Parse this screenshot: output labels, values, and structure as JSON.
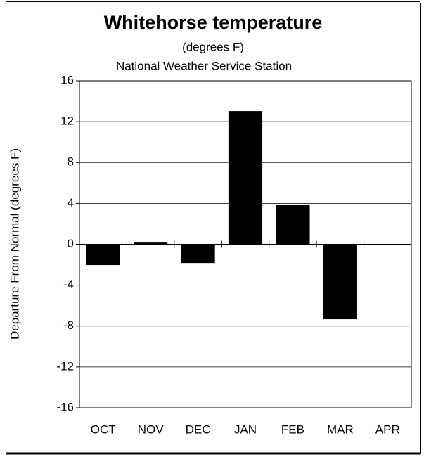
{
  "chart_data": {
    "type": "bar",
    "title": "Whitehorse temperature",
    "subtitle": "(degrees F)",
    "source": "National Weather Service Station",
    "y_label": "Departure From Normal (degrees F)",
    "categories": [
      "OCT",
      "NOV",
      "DEC",
      "JAN",
      "FEB",
      "MAR",
      "APR"
    ],
    "values": [
      -2.0,
      0.2,
      -1.8,
      13.0,
      3.8,
      -7.3,
      null
    ],
    "color": "#000000",
    "ylim": [
      -16,
      16
    ],
    "yticks": [
      -16,
      -12,
      -8,
      -4,
      0,
      4,
      8,
      12,
      16
    ],
    "grid": true
  }
}
